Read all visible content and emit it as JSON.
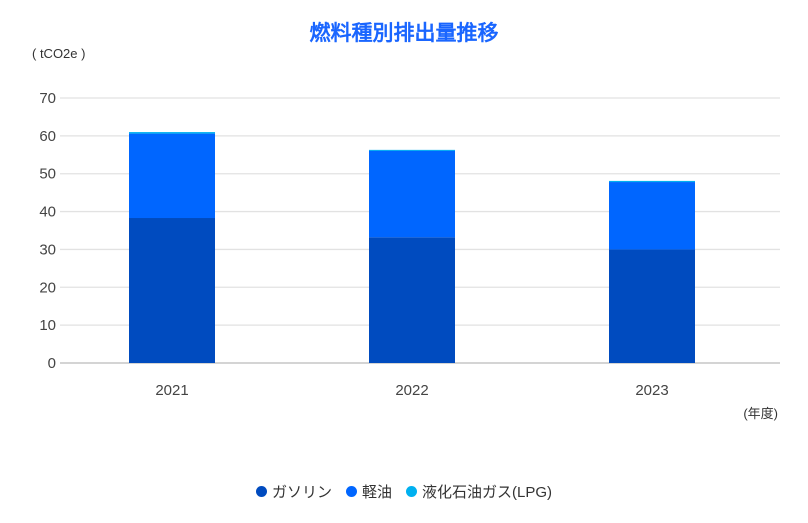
{
  "chart_data": {
    "type": "bar",
    "stacked": true,
    "title": "燃料種別排出量推移",
    "ylabel": "( tCO2e )",
    "xlabel": "(年度)",
    "categories": [
      "2021",
      "2022",
      "2023"
    ],
    "ylim": [
      0,
      70
    ],
    "yticks": [
      0,
      10,
      20,
      30,
      40,
      50,
      60,
      70
    ],
    "grid": true,
    "legend_position": "bottom",
    "series": [
      {
        "name": "ガソリン",
        "color": "#004bbf",
        "values": [
          38.3,
          33.2,
          30.0
        ]
      },
      {
        "name": "軽油",
        "color": "#0066ff",
        "values": [
          22.3,
          22.9,
          17.8
        ]
      },
      {
        "name": "液化石油ガス(LPG)",
        "color": "#00b0f0",
        "values": [
          0.4,
          0.2,
          0.3
        ]
      }
    ]
  }
}
